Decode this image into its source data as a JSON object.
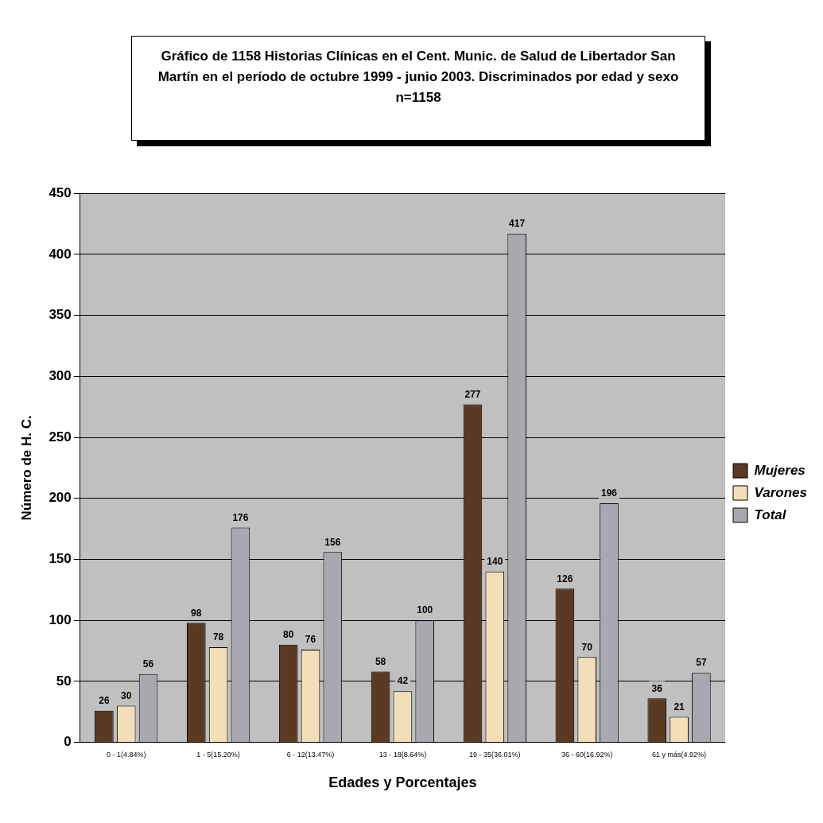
{
  "chart_data": {
    "type": "bar",
    "title": "Gráfico de 1158 Historias Clínicas en el Cent. Munic. de Salud de Libertador San Martín en el período de octubre 1999 - junio 2003. Discriminados por edad y sexo",
    "subtitle": "n=1158",
    "xlabel": "Edades y Porcentajes",
    "ylabel": "Número de H. C.",
    "categories": [
      "0 - 1(4.84%)",
      "1 - 5(15.20%)",
      "6 - 12(13.47%)",
      "13 - 18(8.64%)",
      "19 - 35(36.01%)",
      "36 - 60(16.92%)",
      "61 y más(4.92%)"
    ],
    "series": [
      {
        "name": "Mujeres",
        "color": "#5a3a22",
        "values": [
          26,
          98,
          80,
          58,
          277,
          126,
          36
        ]
      },
      {
        "name": "Varones",
        "color": "#f2dfb8",
        "values": [
          30,
          78,
          76,
          42,
          140,
          70,
          21
        ]
      },
      {
        "name": "Total",
        "color": "#a8a8b0",
        "values": [
          56,
          176,
          156,
          100,
          417,
          196,
          57
        ]
      }
    ],
    "ylim": [
      0,
      450
    ],
    "yticks": [
      0,
      50,
      100,
      150,
      200,
      250,
      300,
      350,
      400,
      450
    ],
    "grid": "y",
    "legend": "right",
    "data_labels": true
  }
}
